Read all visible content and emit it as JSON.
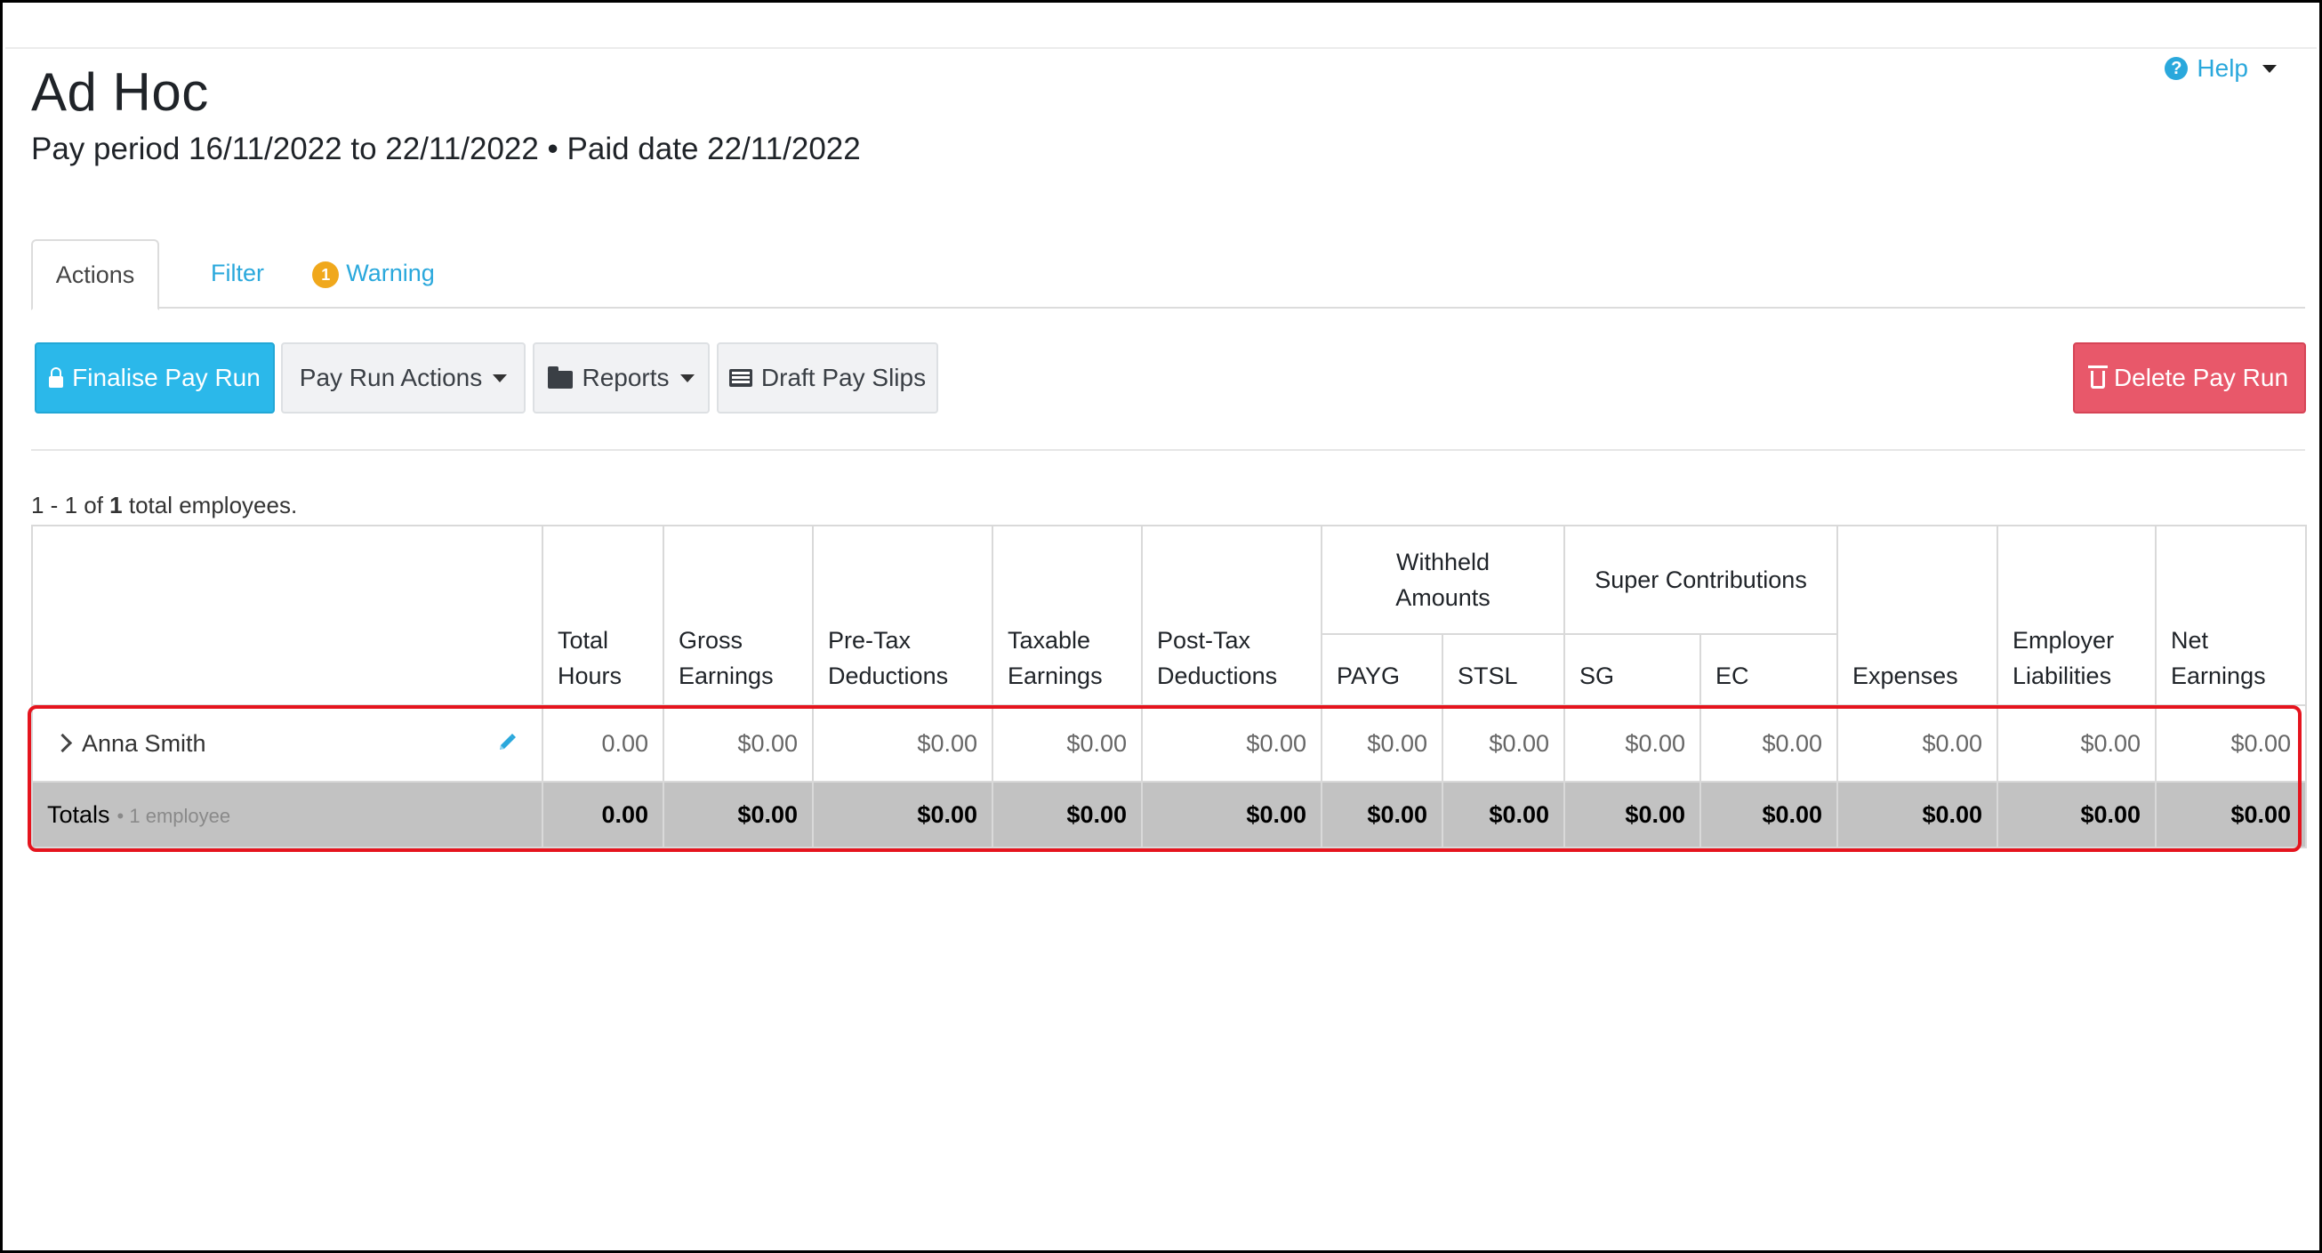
{
  "help": {
    "label": "Help"
  },
  "header": {
    "title": "Ad Hoc",
    "subtitle": "Pay period 16/11/2022 to 22/11/2022 • Paid date 22/11/2022"
  },
  "tabs": [
    {
      "label": "Actions",
      "active": true
    },
    {
      "label": "Filter"
    },
    {
      "label": "Warning",
      "badge": "1"
    }
  ],
  "toolbar": {
    "finalise": "Finalise Pay Run",
    "pay_run_actions": "Pay Run Actions",
    "reports": "Reports",
    "draft_pay_slips": "Draft Pay Slips",
    "delete": "Delete Pay Run"
  },
  "employee_count": {
    "range": "1 - 1 of ",
    "total": "1",
    "suffix": " total employees."
  },
  "table": {
    "headers": {
      "total_hours": [
        "Total",
        "Hours"
      ],
      "gross_earnings": [
        "Gross",
        "Earnings"
      ],
      "pre_tax": [
        "Pre-Tax",
        "Deductions"
      ],
      "taxable": [
        "Taxable",
        "Earnings"
      ],
      "post_tax": [
        "Post-Tax",
        "Deductions"
      ],
      "withheld": [
        "Withheld",
        "Amounts"
      ],
      "payg": "PAYG",
      "stsl": "STSL",
      "super": "Super Contributions",
      "sg": "SG",
      "ec": "EC",
      "expenses": "Expenses",
      "employer_liabilities": [
        "Employer",
        "Liabilities"
      ],
      "net_earnings": [
        "Net",
        "Earnings"
      ]
    },
    "rows": [
      {
        "name": "Anna Smith",
        "values": [
          "0.00",
          "$0.00",
          "$0.00",
          "$0.00",
          "$0.00",
          "$0.00",
          "$0.00",
          "$0.00",
          "$0.00",
          "$0.00",
          "$0.00",
          "$0.00"
        ]
      }
    ],
    "totals": {
      "label": "Totals",
      "sub": "• 1 employee",
      "values": [
        "0.00",
        "$0.00",
        "$0.00",
        "$0.00",
        "$0.00",
        "$0.00",
        "$0.00",
        "$0.00",
        "$0.00",
        "$0.00",
        "$0.00",
        "$0.00"
      ]
    }
  },
  "colors": {
    "accent": "#2aa8dc",
    "finalise": "#2bb8ea",
    "delete": "#e8586a",
    "warning_badge": "#f0a81c",
    "highlight": "#e5141e",
    "totals_bg": "#c2c2c2"
  }
}
